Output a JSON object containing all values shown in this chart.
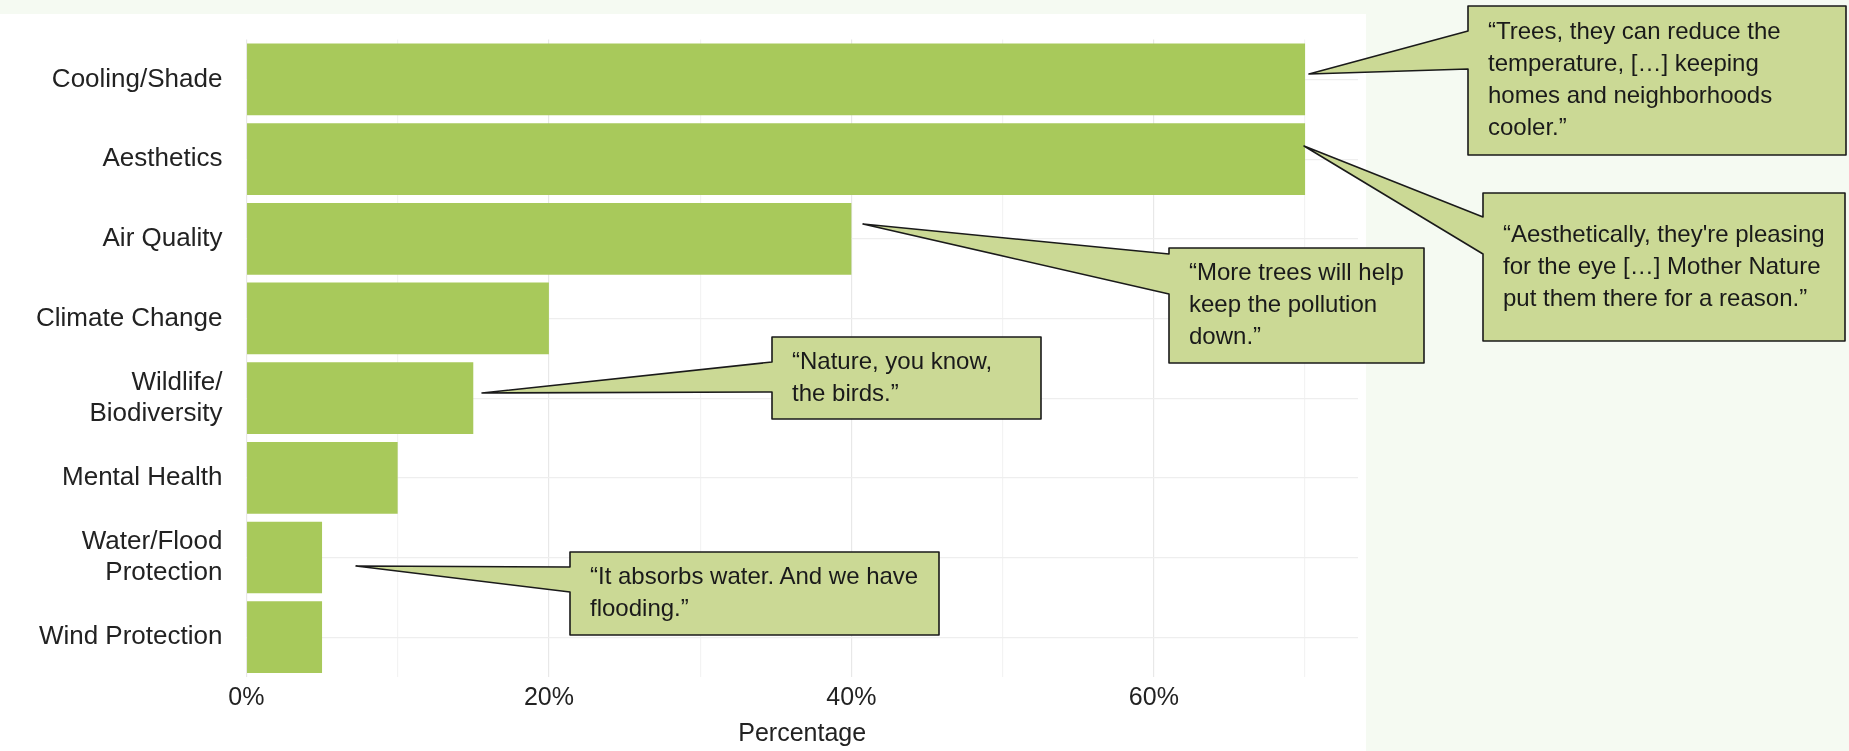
{
  "chart_data": {
    "type": "bar",
    "orientation": "horizontal",
    "xlabel": "Percentage",
    "categories": [
      "Cooling/Shade",
      "Aesthetics",
      "Air Quality",
      "Climate Change",
      "Wildlife/ Biodiversity",
      "Mental Health",
      "Water/Flood Protection",
      "Wind Protection"
    ],
    "values": [
      70,
      70,
      40,
      20,
      15,
      10,
      5,
      5
    ],
    "color": "#a8c95b",
    "xlim": [
      0,
      73.5
    ],
    "xticks": [
      {
        "value": 0,
        "label": "0%"
      },
      {
        "value": 10,
        "label": null
      },
      {
        "value": 20,
        "label": "20%"
      },
      {
        "value": 30,
        "label": null
      },
      {
        "value": 40,
        "label": "40%"
      },
      {
        "value": 50,
        "label": null
      },
      {
        "value": 60,
        "label": "60%"
      },
      {
        "value": 70,
        "label": null
      }
    ],
    "grid": true,
    "legend": false,
    "annotations": [
      "“Trees, they can reduce the temperature, […] keeping homes and neighborhoods cooler.”",
      "“Aesthetically, they're pleasing for the eye […] Mother Nature put them there for a reason.”",
      "“More trees will help keep the pollution down.”",
      "“Nature, you know, the birds.”",
      "“It absorbs water. And we have flooding.”"
    ]
  }
}
